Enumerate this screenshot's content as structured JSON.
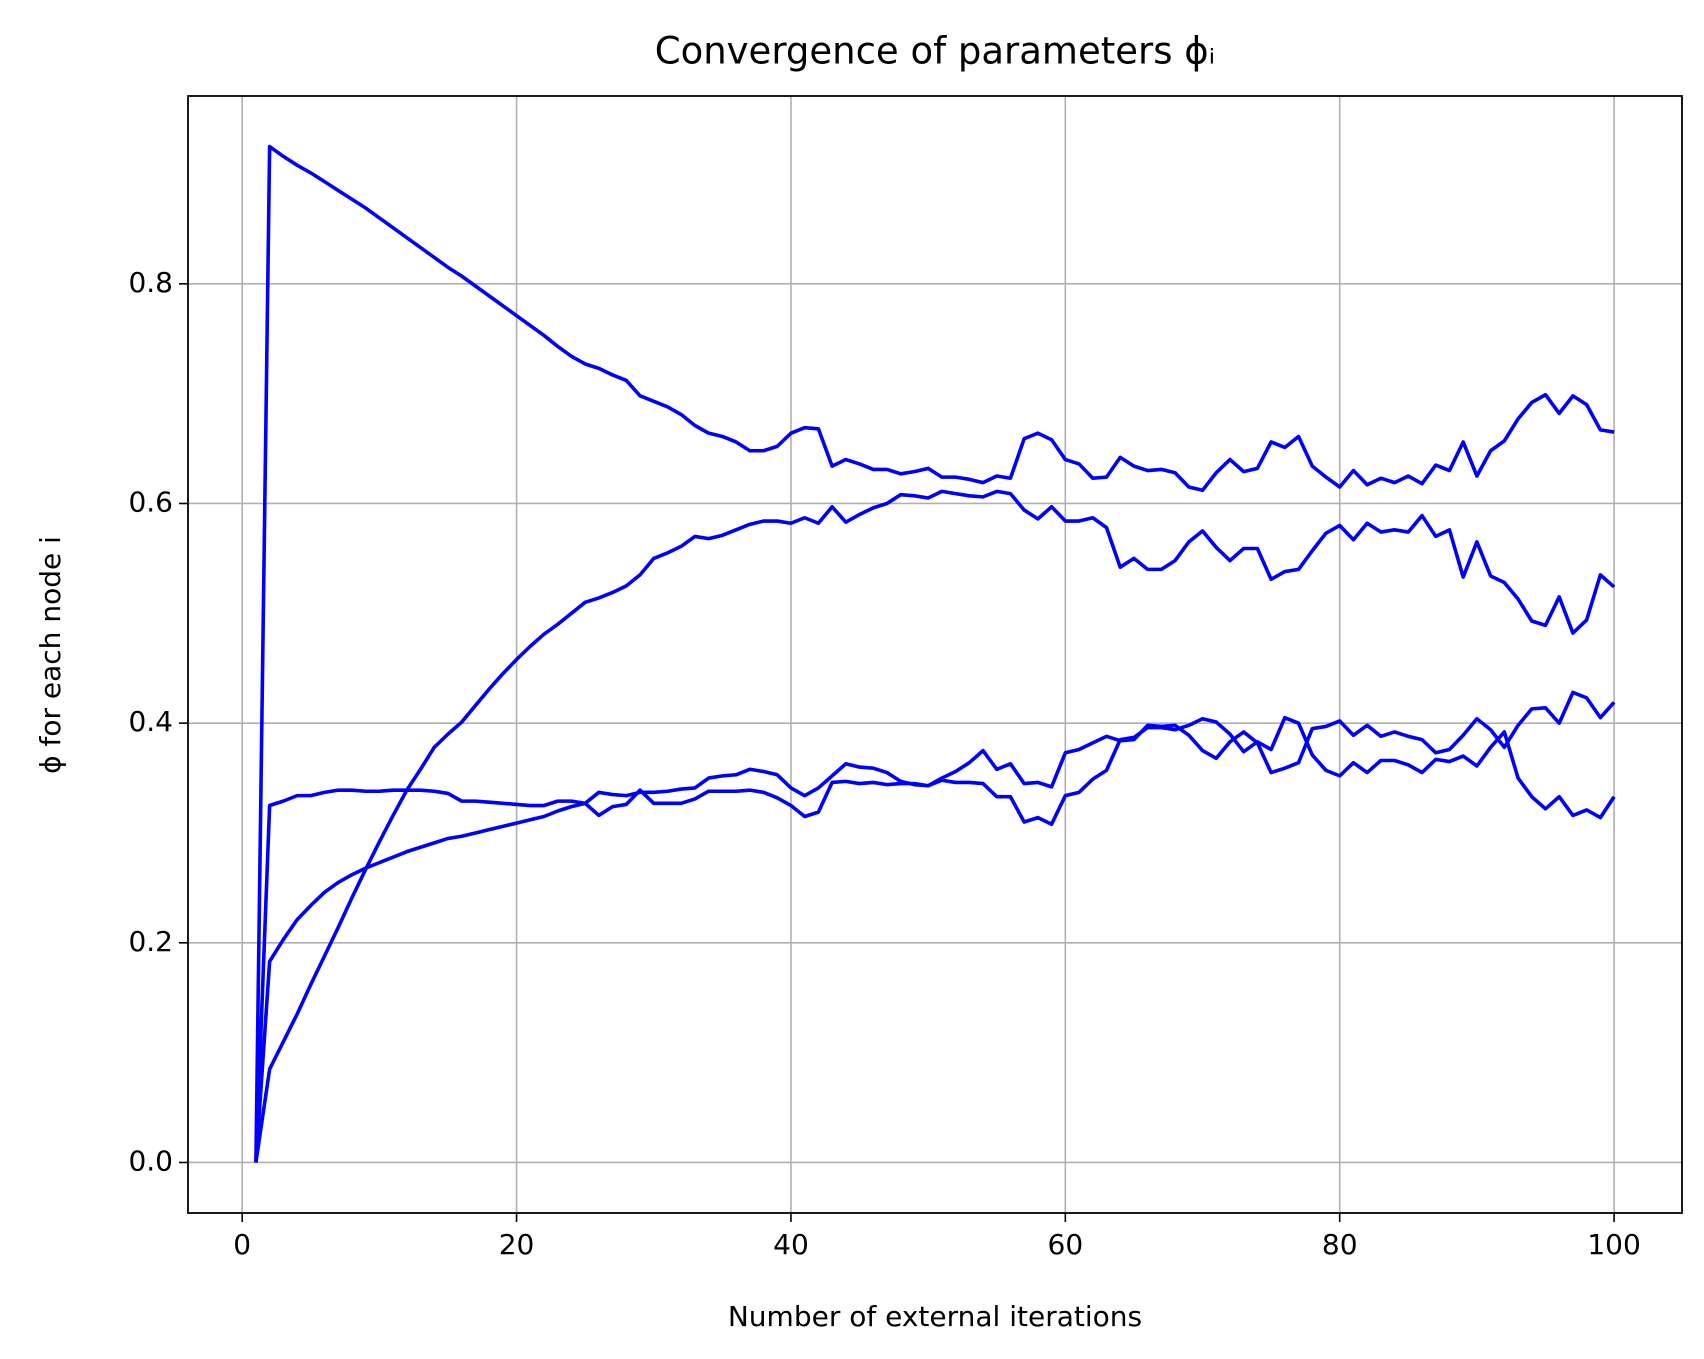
{
  "chart_data": {
    "type": "line",
    "title": "Convergence of parameters ϕᵢ",
    "x_label": "Number of external iterations",
    "y_label": "ϕ for each node i",
    "x": [
      1,
      2,
      3,
      4,
      5,
      6,
      7,
      8,
      9,
      10,
      11,
      12,
      13,
      14,
      15,
      16,
      17,
      18,
      19,
      20,
      21,
      22,
      23,
      24,
      25,
      26,
      27,
      28,
      29,
      30,
      31,
      32,
      33,
      34,
      35,
      36,
      37,
      38,
      39,
      40,
      41,
      42,
      43,
      44,
      45,
      46,
      47,
      48,
      49,
      50,
      51,
      52,
      53,
      54,
      55,
      56,
      57,
      58,
      59,
      60,
      61,
      62,
      63,
      64,
      65,
      66,
      67,
      68,
      69,
      70,
      71,
      72,
      73,
      74,
      75,
      76,
      77,
      78,
      79,
      80,
      81,
      82,
      83,
      84,
      85,
      86,
      87,
      88,
      89,
      90,
      91,
      92,
      93,
      94,
      95,
      96,
      97,
      98,
      99,
      100
    ],
    "series": [
      {
        "color": "#0000ff",
        "values": [
          0,
          0.925,
          0.916,
          0.908,
          0.901,
          0.893,
          0.885,
          0.877,
          0.869,
          0.86,
          0.851,
          0.842,
          0.833,
          0.824,
          0.815,
          0.807,
          0.798,
          0.789,
          0.78,
          0.771,
          0.762,
          0.753,
          0.743,
          0.734,
          0.727,
          0.723,
          0.717,
          0.712,
          0.698,
          0.693,
          0.688,
          0.681,
          0.671,
          0.664,
          0.661,
          0.656,
          0.648,
          0.648,
          0.652,
          0.664,
          0.669,
          0.668,
          0.634,
          0.64,
          0.636,
          0.631,
          0.631,
          0.627,
          0.629,
          0.632,
          0.624,
          0.624,
          0.622,
          0.619,
          0.625,
          0.623,
          0.659,
          0.664,
          0.658,
          0.64,
          0.636,
          0.623,
          0.624,
          0.642,
          0.634,
          0.63,
          0.631,
          0.628,
          0.615,
          0.612,
          0.628,
          0.64,
          0.629,
          0.632,
          0.656,
          0.651,
          0.661,
          0.634,
          0.624,
          0.615,
          0.63,
          0.617,
          0.623,
          0.619,
          0.625,
          0.618,
          0.635,
          0.63,
          0.656,
          0.625,
          0.648,
          0.657,
          0.677,
          0.692,
          0.699,
          0.682,
          0.698,
          0.69,
          0.667,
          0.665
        ]
      },
      {
        "color": "#0000ff",
        "values": [
          0,
          0.085,
          0.11,
          0.135,
          0.162,
          0.188,
          0.214,
          0.241,
          0.267,
          0.292,
          0.316,
          0.339,
          0.358,
          0.378,
          0.39,
          0.401,
          0.416,
          0.431,
          0.445,
          0.458,
          0.47,
          0.481,
          0.49,
          0.5,
          0.51,
          0.514,
          0.519,
          0.525,
          0.535,
          0.55,
          0.555,
          0.561,
          0.57,
          0.568,
          0.571,
          0.576,
          0.581,
          0.584,
          0.584,
          0.582,
          0.587,
          0.582,
          0.597,
          0.583,
          0.59,
          0.596,
          0.6,
          0.608,
          0.607,
          0.605,
          0.611,
          0.609,
          0.607,
          0.606,
          0.611,
          0.609,
          0.594,
          0.586,
          0.597,
          0.584,
          0.584,
          0.587,
          0.578,
          0.542,
          0.55,
          0.54,
          0.54,
          0.548,
          0.565,
          0.575,
          0.56,
          0.548,
          0.559,
          0.559,
          0.531,
          0.538,
          0.54,
          0.557,
          0.573,
          0.58,
          0.567,
          0.582,
          0.574,
          0.576,
          0.574,
          0.589,
          0.57,
          0.576,
          0.533,
          0.565,
          0.534,
          0.528,
          0.513,
          0.493,
          0.489,
          0.515,
          0.482,
          0.494,
          0.535,
          0.524
        ]
      },
      {
        "color": "#0000ff",
        "values": [
          0,
          0.325,
          0.329,
          0.334,
          0.334,
          0.337,
          0.339,
          0.339,
          0.338,
          0.338,
          0.339,
          0.339,
          0.339,
          0.338,
          0.336,
          0.329,
          0.329,
          0.328,
          0.327,
          0.326,
          0.325,
          0.325,
          0.329,
          0.329,
          0.327,
          0.316,
          0.324,
          0.326,
          0.339,
          0.327,
          0.327,
          0.327,
          0.331,
          0.338,
          0.338,
          0.338,
          0.339,
          0.337,
          0.332,
          0.325,
          0.315,
          0.319,
          0.346,
          0.347,
          0.345,
          0.346,
          0.344,
          0.345,
          0.345,
          0.343,
          0.348,
          0.346,
          0.346,
          0.345,
          0.333,
          0.333,
          0.31,
          0.314,
          0.308,
          0.334,
          0.337,
          0.349,
          0.357,
          0.385,
          0.387,
          0.396,
          0.396,
          0.394,
          0.398,
          0.404,
          0.401,
          0.39,
          0.374,
          0.383,
          0.376,
          0.405,
          0.4,
          0.371,
          0.357,
          0.352,
          0.364,
          0.355,
          0.366,
          0.366,
          0.362,
          0.355,
          0.367,
          0.365,
          0.37,
          0.361,
          0.378,
          0.392,
          0.35,
          0.333,
          0.322,
          0.333,
          0.316,
          0.321,
          0.314,
          0.333
        ]
      },
      {
        "color": "#0000ff",
        "values": [
          0,
          0.183,
          0.203,
          0.221,
          0.234,
          0.246,
          0.255,
          0.262,
          0.268,
          0.273,
          0.278,
          0.283,
          0.287,
          0.291,
          0.295,
          0.297,
          0.3,
          0.303,
          0.306,
          0.309,
          0.312,
          0.315,
          0.32,
          0.324,
          0.327,
          0.337,
          0.335,
          0.334,
          0.337,
          0.337,
          0.338,
          0.34,
          0.341,
          0.35,
          0.352,
          0.353,
          0.358,
          0.356,
          0.353,
          0.341,
          0.334,
          0.341,
          0.352,
          0.363,
          0.36,
          0.359,
          0.355,
          0.347,
          0.344,
          0.343,
          0.35,
          0.356,
          0.364,
          0.375,
          0.358,
          0.363,
          0.345,
          0.346,
          0.342,
          0.373,
          0.376,
          0.382,
          0.388,
          0.384,
          0.385,
          0.398,
          0.397,
          0.398,
          0.389,
          0.375,
          0.368,
          0.383,
          0.392,
          0.382,
          0.355,
          0.359,
          0.364,
          0.395,
          0.397,
          0.402,
          0.389,
          0.398,
          0.388,
          0.392,
          0.388,
          0.385,
          0.373,
          0.376,
          0.389,
          0.404,
          0.394,
          0.378,
          0.398,
          0.413,
          0.414,
          0.4,
          0.428,
          0.423,
          0.405,
          0.419
        ]
      }
    ],
    "xlim": [
      -3.95,
      104.95
    ],
    "ylim": [
      -0.046,
      0.971
    ],
    "xticks": [
      0,
      20,
      40,
      60,
      80,
      100
    ],
    "yticks": [
      {
        "value": 0,
        "label": "0.0"
      },
      0.2,
      0.4,
      0.6,
      0.8
    ],
    "grid": true
  }
}
